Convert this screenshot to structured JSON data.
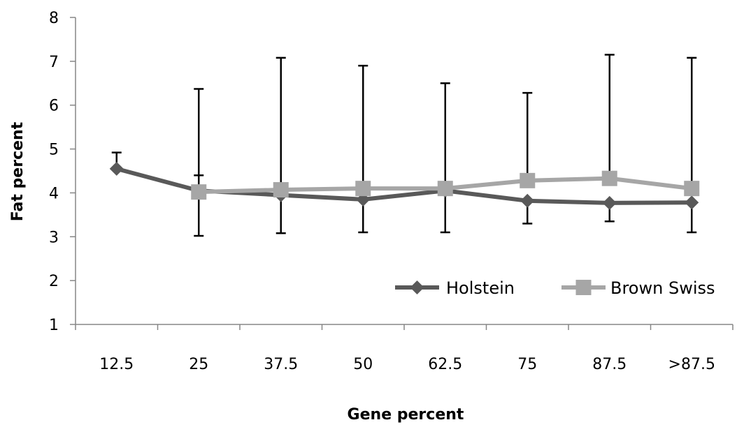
{
  "chart_data": {
    "type": "line",
    "title": "",
    "xlabel": "Gene percent",
    "ylabel": "Fat percent",
    "categories": [
      "12.5",
      "25",
      "37.5",
      "50",
      "62.5",
      "75",
      "87.5",
      ">87.5"
    ],
    "ylim": [
      1,
      8
    ],
    "yticks": [
      1,
      2,
      3,
      4,
      5,
      6,
      7,
      8
    ],
    "grid": false,
    "legend_position": "bottom-right",
    "series": [
      {
        "name": "Holstein",
        "color": "#595959",
        "marker": "diamond",
        "values": [
          4.55,
          4.05,
          3.95,
          3.85,
          4.05,
          3.82,
          3.77,
          3.78
        ],
        "error_upper": [
          4.92,
          4.4,
          null,
          null,
          null,
          null,
          null,
          null
        ],
        "error_lower": [
          null,
          3.02,
          3.08,
          3.1,
          3.1,
          3.3,
          3.35,
          3.1
        ]
      },
      {
        "name": "Brown Swiss",
        "color": "#a6a6a6",
        "marker": "square",
        "values": [
          null,
          4.02,
          4.07,
          4.1,
          4.1,
          4.28,
          4.33,
          4.1
        ],
        "error_upper": [
          null,
          6.37,
          7.08,
          6.9,
          6.5,
          6.28,
          7.15,
          7.08
        ],
        "error_lower": [
          null,
          null,
          null,
          null,
          null,
          null,
          null,
          null
        ]
      }
    ]
  }
}
